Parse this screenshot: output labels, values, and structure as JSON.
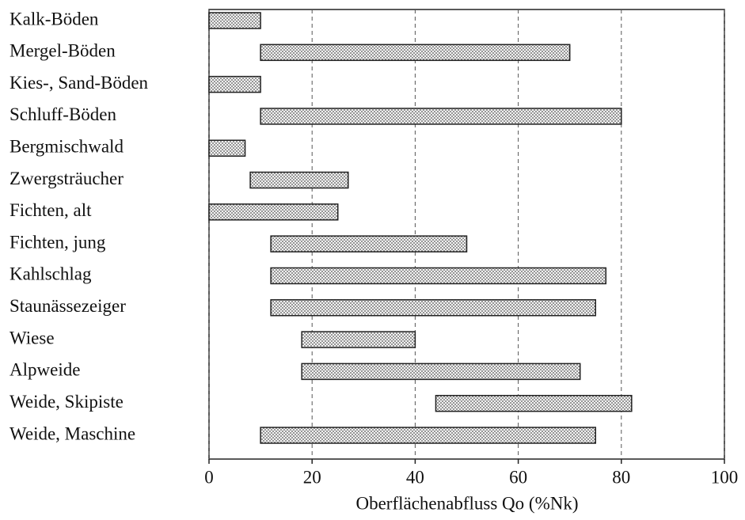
{
  "chart_data": {
    "type": "range_bar",
    "x_label": "Oberflächenabfluss Qo (%Nk)",
    "categories": [
      "Kalk-Böden",
      "Mergel-Böden",
      "Kies-, Sand-Böden",
      "Schluff-Böden",
      "Bergmischwald",
      "Zwergsträucher",
      "Fichten, alt",
      "Fichten, jung",
      "Kahlschlag",
      "Staunässezeiger",
      "Wiese",
      "Alpweide",
      "Weide, Skipiste",
      "Weide, Maschine"
    ],
    "starts": [
      0,
      10,
      0,
      10,
      0,
      8,
      0,
      12,
      12,
      12,
      18,
      18,
      44,
      10
    ],
    "ends": [
      10,
      70,
      10,
      80,
      7,
      27,
      25,
      50,
      77,
      75,
      40,
      72,
      82,
      75
    ],
    "xlim": [
      0,
      100
    ],
    "xticks": [
      0,
      20,
      40,
      60,
      80,
      100
    ],
    "grid": true,
    "color": "#d8d8d8"
  }
}
